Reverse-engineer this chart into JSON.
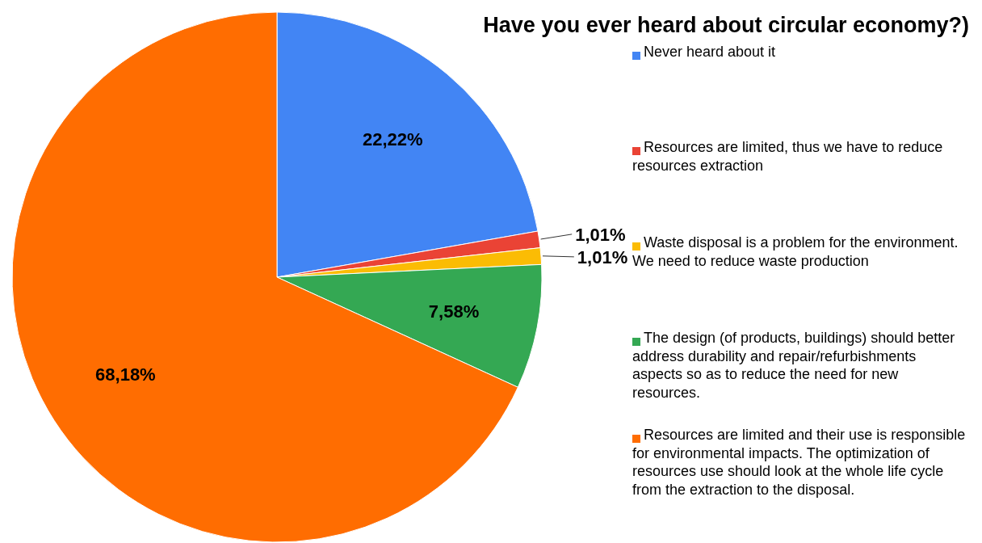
{
  "chart_data": {
    "type": "pie",
    "title": "Have you ever heard about circular economy?)",
    "categories": [
      "Never heard about it",
      "Resources are limited, thus we have to reduce resources extraction",
      "Waste disposal is a problem for the environment. We need to reduce waste production",
      "The design (of products, buildings) should better address durability and repair/refurbishments aspects so as to reduce the need for new resources.",
      "Resources are limited and their use is responsible for environmental impacts. The optimization of resources use should look at the whole life cycle from the extraction to the disposal."
    ],
    "values": [
      22.22,
      1.01,
      1.01,
      7.58,
      68.18
    ],
    "value_labels": [
      "22,22%",
      "1,01%",
      "1,01%",
      "7,58%",
      "68,18%"
    ],
    "colors": [
      "#4285f4",
      "#ea4335",
      "#fbbc04",
      "#34a853",
      "#ff6d01"
    ],
    "legend": "right"
  }
}
